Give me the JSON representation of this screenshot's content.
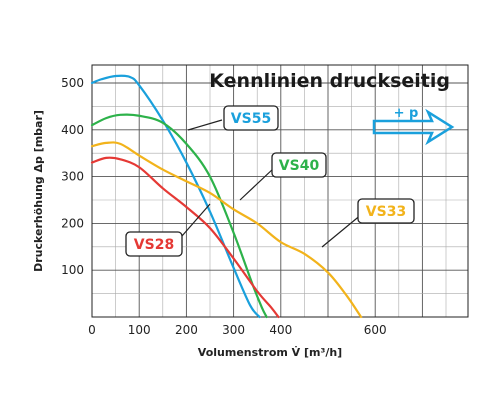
{
  "chart_data": {
    "type": "line",
    "title": "Kennlinien druckseitig",
    "xlabel": "Volumenstrom V̇ [m³/h]",
    "ylabel": "Druckerhöhung Δp [mbar]",
    "xlim": [
      0,
      800
    ],
    "ylim": [
      0,
      550
    ],
    "x_ticks": [
      "0",
      "100",
      "200",
      "300",
      "400",
      "600"
    ],
    "y_ticks": [
      "100",
      "200",
      "300",
      "400",
      "500"
    ],
    "grid": true,
    "annotation": "+ p",
    "series": [
      {
        "name": "VS55",
        "color": "#1aa0dc",
        "points": [
          [
            0,
            500
          ],
          [
            20,
            508
          ],
          [
            50,
            515
          ],
          [
            80,
            513
          ],
          [
            100,
            495
          ],
          [
            150,
            420
          ],
          [
            200,
            330
          ],
          [
            250,
            225
          ],
          [
            300,
            105
          ],
          [
            335,
            25
          ],
          [
            355,
            0
          ]
        ]
      },
      {
        "name": "VS40",
        "color": "#2db24a",
        "points": [
          [
            0,
            410
          ],
          [
            30,
            425
          ],
          [
            60,
            432
          ],
          [
            100,
            430
          ],
          [
            150,
            415
          ],
          [
            200,
            370
          ],
          [
            250,
            300
          ],
          [
            300,
            180
          ],
          [
            340,
            70
          ],
          [
            360,
            20
          ],
          [
            370,
            0
          ]
        ]
      },
      {
        "name": "VS33",
        "color": "#f2b31b",
        "points": [
          [
            0,
            365
          ],
          [
            30,
            372
          ],
          [
            60,
            370
          ],
          [
            100,
            345
          ],
          [
            150,
            315
          ],
          [
            200,
            290
          ],
          [
            250,
            265
          ],
          [
            300,
            230
          ],
          [
            350,
            200
          ],
          [
            400,
            160
          ],
          [
            450,
            135
          ],
          [
            500,
            95
          ],
          [
            540,
            45
          ],
          [
            570,
            0
          ]
        ]
      },
      {
        "name": "VS28",
        "color": "#e53935",
        "points": [
          [
            0,
            330
          ],
          [
            30,
            340
          ],
          [
            60,
            337
          ],
          [
            100,
            320
          ],
          [
            150,
            275
          ],
          [
            200,
            235
          ],
          [
            250,
            190
          ],
          [
            300,
            125
          ],
          [
            350,
            55
          ],
          [
            380,
            20
          ],
          [
            395,
            0
          ]
        ]
      }
    ]
  }
}
